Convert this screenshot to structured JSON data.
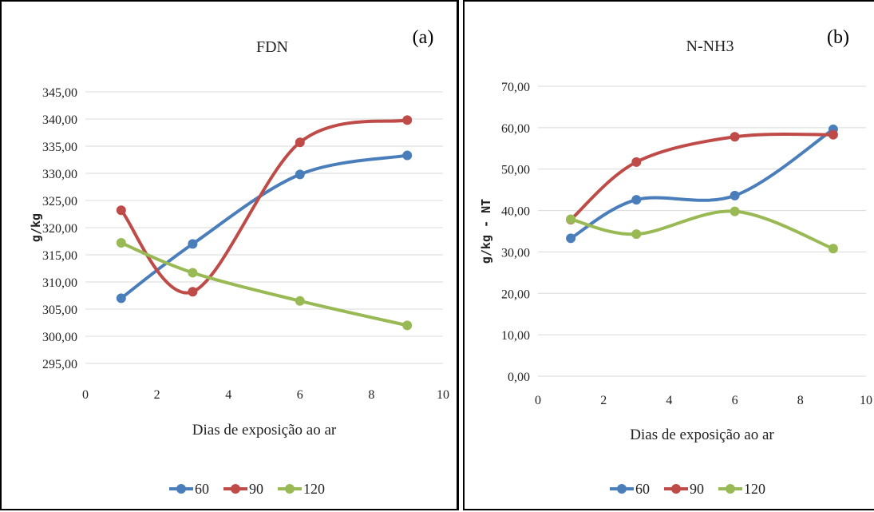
{
  "chart_data": [
    {
      "type": "line",
      "title": "FDN",
      "panel_label": "(a)",
      "xlabel": "Dias de exposição ao ar",
      "ylabel": "g/kg",
      "xlim": [
        0,
        10
      ],
      "ylim": [
        295,
        345
      ],
      "xticks": [
        "0",
        "2",
        "4",
        "6",
        "8",
        "10"
      ],
      "yticks": [
        "295,00",
        "300,00",
        "305,00",
        "310,00",
        "315,00",
        "320,00",
        "325,00",
        "330,00",
        "335,00",
        "340,00",
        "345,00"
      ],
      "x": [
        1,
        3,
        6,
        9
      ],
      "series": [
        {
          "name": "60",
          "color": "#4a7ebb",
          "values": [
            307.0,
            317.0,
            329.8,
            333.3
          ]
        },
        {
          "name": "90",
          "color": "#be4b48",
          "values": [
            323.2,
            308.2,
            335.7,
            339.8
          ]
        },
        {
          "name": "120",
          "color": "#98b954",
          "values": [
            317.2,
            311.7,
            306.5,
            302.0
          ]
        }
      ],
      "grid": true,
      "legend": "bottom"
    },
    {
      "type": "line",
      "title": "N-NH3",
      "panel_label": "(b)",
      "xlabel": "Dias de exposição ao ar",
      "ylabel": "g/kg - NT",
      "xlim": [
        0,
        10
      ],
      "ylim": [
        0,
        70
      ],
      "xticks": [
        "0",
        "2",
        "4",
        "6",
        "8",
        "10"
      ],
      "yticks": [
        "0,00",
        "10,00",
        "20,00",
        "30,00",
        "40,00",
        "50,00",
        "60,00",
        "70,00"
      ],
      "x": [
        1,
        3,
        6,
        9
      ],
      "series": [
        {
          "name": "60",
          "color": "#4a7ebb",
          "values": [
            33.3,
            42.6,
            43.6,
            59.6
          ]
        },
        {
          "name": "90",
          "color": "#be4b48",
          "values": [
            37.8,
            51.7,
            57.8,
            58.3
          ]
        },
        {
          "name": "120",
          "color": "#98b954",
          "values": [
            37.9,
            34.3,
            39.8,
            30.8
          ]
        }
      ],
      "grid": true,
      "legend": "bottom"
    }
  ]
}
